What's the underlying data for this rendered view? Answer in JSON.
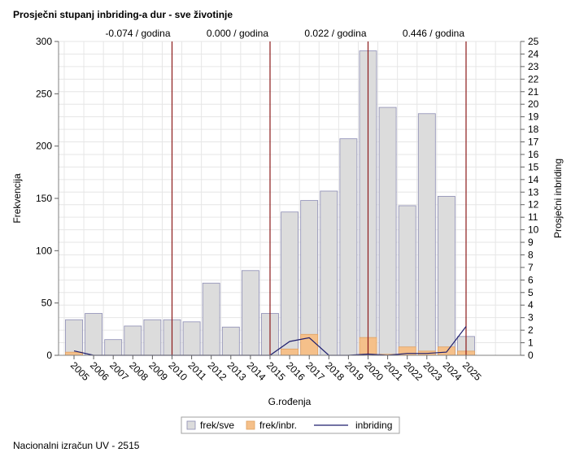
{
  "title": "Prosječni stupanj inbriding-a dur - sve životinje",
  "footer": "Nacionalni izračun UV - 2515",
  "colors": {
    "bar_all_fill": "#dcdcdc",
    "bar_all_stroke": "#8c8cb4",
    "bar_inbr_fill": "#f5c08a",
    "bar_inbr_stroke": "#e0a060",
    "line": "#1f1f6e",
    "refline": "#8b1a1a",
    "grid": "#e6e6e6"
  },
  "chart_data": {
    "type": "bar",
    "xlabel": "G.rođenja",
    "ylabel": "Frekvencija",
    "y2label": "Prosječni inbriding",
    "ylim": [
      0,
      300
    ],
    "y2lim": [
      0,
      25
    ],
    "yticks": [
      0,
      50,
      100,
      150,
      200,
      250,
      300
    ],
    "y2ticks": [
      0,
      1,
      2,
      3,
      4,
      5,
      6,
      7,
      8,
      9,
      10,
      11,
      12,
      13,
      14,
      15,
      16,
      17,
      18,
      19,
      20,
      21,
      22,
      23,
      24,
      25
    ],
    "categories": [
      "2005",
      "2006",
      "2007",
      "2008",
      "2009",
      "2010",
      "2011",
      "2012",
      "2013",
      "2014",
      "2015",
      "2016",
      "2017",
      "2018",
      "2019",
      "2020",
      "2021",
      "2022",
      "2023",
      "2024",
      "2025"
    ],
    "grid": true,
    "legend_position": "bottom",
    "series": [
      {
        "name": "frek/sve",
        "kind": "bar",
        "axis": "left",
        "values": [
          34,
          40,
          15,
          28,
          34,
          34,
          32,
          69,
          27,
          81,
          40,
          137,
          148,
          157,
          207,
          291,
          237,
          143,
          231,
          152,
          18
        ]
      },
      {
        "name": "frek/inbr.",
        "kind": "bar",
        "axis": "left",
        "values": [
          3,
          0,
          0,
          0,
          0,
          0,
          0,
          0,
          0,
          0,
          0,
          6,
          20,
          0,
          0,
          17,
          1,
          8,
          4,
          8,
          4
        ]
      },
      {
        "name": "inbriding",
        "kind": "line",
        "axis": "right",
        "values": [
          0.35,
          0.0,
          0.0,
          0.0,
          0.0,
          0.0,
          0.0,
          0.0,
          0.0,
          0.0,
          0.0,
          1.1,
          1.4,
          0.0,
          0.0,
          0.1,
          0.0,
          0.15,
          0.15,
          0.25,
          2.3
        ]
      }
    ],
    "reference_lines": [
      {
        "x": "2010",
        "label": "-0.074 / godina"
      },
      {
        "x": "2015",
        "label": "0.000 / godina"
      },
      {
        "x": "2020",
        "label": "0.022 / godina"
      },
      {
        "x": "2025",
        "label": "0.446 / godina"
      }
    ]
  }
}
